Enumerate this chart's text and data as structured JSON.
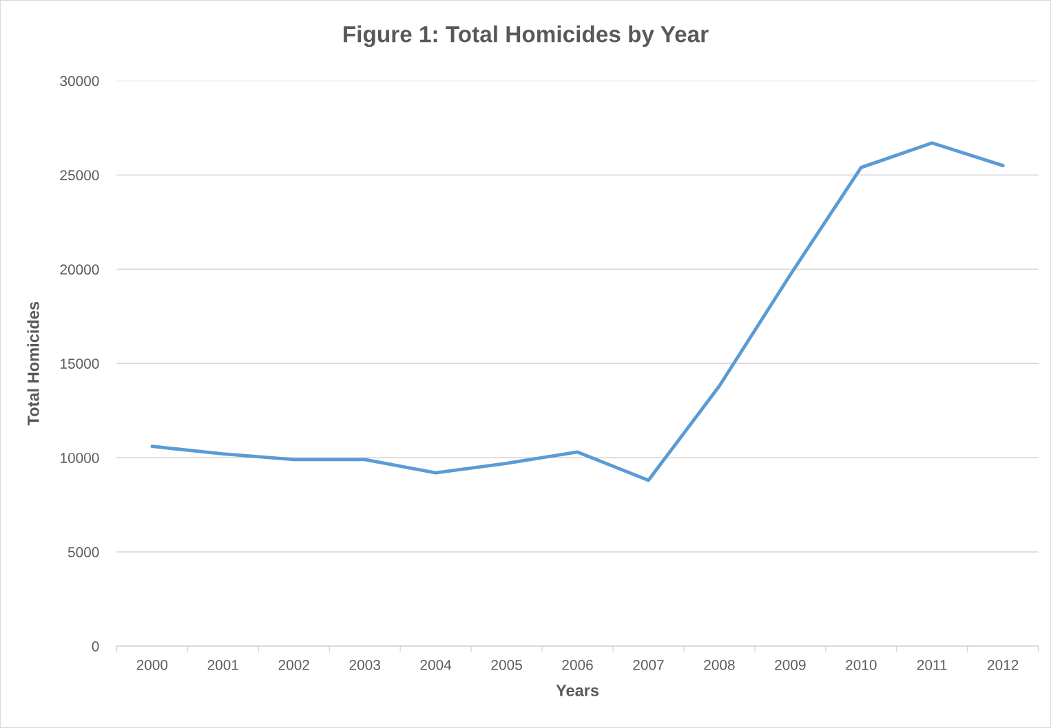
{
  "chart_data": {
    "type": "line",
    "title": "Figure 1: Total Homicides by Year",
    "xlabel": "Years",
    "ylabel": "Total Homicides",
    "categories": [
      "2000",
      "2001",
      "2002",
      "2003",
      "2004",
      "2005",
      "2006",
      "2007",
      "2008",
      "2009",
      "2010",
      "2011",
      "2012"
    ],
    "series": [
      {
        "color": "#5b9bd5",
        "values": [
          10600,
          10200,
          9900,
          9900,
          9200,
          9700,
          10300,
          8800,
          13800,
          19700,
          25400,
          26700,
          25500
        ]
      }
    ],
    "ylim": [
      0,
      30000
    ],
    "yticks": [
      0,
      5000,
      10000,
      15000,
      20000,
      25000,
      30000
    ],
    "grid": "y",
    "legend": false,
    "marker": "none",
    "line_style": "solid"
  }
}
